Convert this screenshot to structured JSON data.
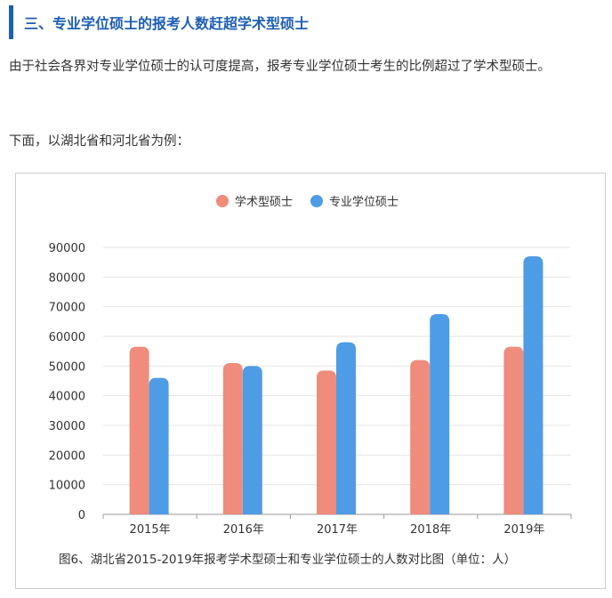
{
  "heading": "三、专业学位硕士的报考人数赶超学术型硕士",
  "paragraphs": [
    "由于社会各界对专业学位硕士的认可度提高，报考专业学位硕士考生的比例超过了学术型硕士。",
    "下面，以湖北省和河北省为例："
  ],
  "chart_data": {
    "type": "bar",
    "categories": [
      "2015年",
      "2016年",
      "2017年",
      "2018年",
      "2019年"
    ],
    "series": [
      {
        "name": "学术型硕士",
        "color": "#ef8c7c",
        "values": [
          56500,
          51000,
          48500,
          52000,
          56500
        ]
      },
      {
        "name": "专业学位硕士",
        "color": "#4e9ce6",
        "values": [
          46000,
          50000,
          58000,
          67500,
          87000
        ]
      }
    ],
    "y_ticks": [
      "0",
      "10000",
      "20000",
      "30000",
      "40000",
      "50000",
      "60000",
      "70000",
      "80000",
      "90000"
    ],
    "ylim": [
      0,
      90000
    ],
    "grid": true,
    "legend": "top-center",
    "caption": "图6、湖北省2015-2019年报考学术型硕士和专业学位硕士的人数对比图（单位：人）"
  }
}
